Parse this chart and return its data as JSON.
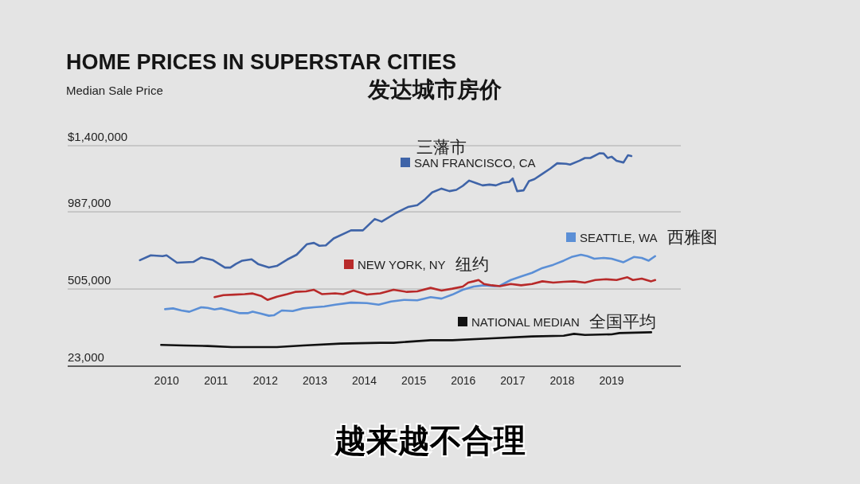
{
  "chart_data": {
    "type": "line",
    "title": "HOME PRICES IN SUPERSTAR CITIES",
    "subtitle": "发达城市房价",
    "ylabel": "Median Sale Price",
    "xlim": [
      2008.0,
      2020.4
    ],
    "xticks": [
      2010,
      2011,
      2012,
      2013,
      2014,
      2015,
      2016,
      2017,
      2018,
      2019
    ],
    "ylim": [
      23000,
      1400000
    ],
    "yticks": [
      {
        "value": 23000,
        "label": "23,000"
      },
      {
        "value": 505000,
        "label": "505,000"
      },
      {
        "value": 987000,
        "label": "987,000"
      },
      {
        "value": 1400000,
        "label": "$1,400,000"
      }
    ],
    "grid": "y",
    "legend": "right",
    "marker": "none",
    "line_style": "solid",
    "annotations": [
      "三藩市",
      "西雅图",
      "纽约",
      "全国平均",
      "越来越不合理"
    ],
    "series": [
      {
        "name": "SAN FRANCISCO, CA",
        "color": "#3f64a8",
        "x": [
          2009.46,
          2009.68,
          2009.92,
          2010.0,
          2010.21,
          2010.54,
          2010.7,
          2010.94,
          2011.18,
          2011.29,
          2011.4,
          2011.53,
          2011.72,
          2011.85,
          2012.07,
          2012.23,
          2012.44,
          2012.63,
          2012.84,
          2012.98,
          2013.09,
          2013.22,
          2013.38,
          2013.73,
          2013.97,
          2014.21,
          2014.35,
          2014.64,
          2014.88,
          2015.07,
          2015.23,
          2015.37,
          2015.56,
          2015.72,
          2015.86,
          2015.99,
          2016.12,
          2016.26,
          2016.39,
          2016.53,
          2016.66,
          2016.8,
          2016.93,
          2017.0,
          2017.09,
          2017.22,
          2017.33,
          2017.44,
          2017.6,
          2017.76,
          2017.9,
          2018.08,
          2018.16,
          2018.35,
          2018.46,
          2018.57,
          2018.76,
          2018.84,
          2018.92,
          2019.0,
          2019.1,
          2019.24,
          2019.33,
          2019.4
        ],
        "values": [
          685000,
          715000,
          710000,
          715000,
          669000,
          674000,
          702000,
          685000,
          639000,
          639000,
          661000,
          682000,
          690000,
          661000,
          639000,
          649000,
          689000,
          719000,
          785000,
          793000,
          775000,
          777000,
          821000,
          871000,
          871000,
          942000,
          926000,
          980000,
          1017000,
          1028000,
          1066000,
          1108000,
          1132000,
          1116000,
          1124000,
          1149000,
          1182000,
          1166000,
          1152000,
          1157000,
          1152000,
          1169000,
          1174000,
          1195000,
          1116000,
          1121000,
          1179000,
          1191000,
          1224000,
          1257000,
          1290000,
          1287000,
          1282000,
          1306000,
          1323000,
          1323000,
          1353000,
          1351000,
          1323000,
          1331000,
          1306000,
          1295000,
          1340000,
          1335000
        ]
      },
      {
        "name": "SEATTLE, WA",
        "color": "#5b8fd6",
        "x": [
          2009.97,
          2010.13,
          2010.3,
          2010.46,
          2010.7,
          2010.83,
          2010.97,
          2011.1,
          2011.32,
          2011.48,
          2011.64,
          2011.74,
          2011.91,
          2012.07,
          2012.17,
          2012.33,
          2012.55,
          2012.76,
          2012.98,
          2013.19,
          2013.41,
          2013.73,
          2014.05,
          2014.29,
          2014.54,
          2014.8,
          2015.07,
          2015.34,
          2015.56,
          2015.78,
          2015.99,
          2016.21,
          2016.42,
          2016.63,
          2016.74,
          2016.96,
          2017.17,
          2017.39,
          2017.6,
          2017.82,
          2018.03,
          2018.19,
          2018.38,
          2018.51,
          2018.65,
          2018.84,
          2019.0,
          2019.24,
          2019.45,
          2019.61,
          2019.75,
          2019.88
        ],
        "values": [
          379000,
          384000,
          371000,
          363000,
          391000,
          387000,
          377000,
          384000,
          367000,
          354000,
          354000,
          363000,
          351000,
          338000,
          341000,
          371000,
          367000,
          384000,
          391000,
          396000,
          407000,
          420000,
          417000,
          407000,
          427000,
          437000,
          434000,
          454000,
          445000,
          470000,
          500000,
          520000,
          528000,
          523000,
          525000,
          561000,
          583000,
          606000,
          636000,
          656000,
          682000,
          705000,
          719000,
          710000,
          694000,
          699000,
          694000,
          672000,
          705000,
          699000,
          682000,
          710000
        ]
      },
      {
        "name": "NEW YORK, NY",
        "color": "#b82a2a",
        "x": [
          2010.97,
          2011.15,
          2011.37,
          2011.58,
          2011.74,
          2011.91,
          2012.04,
          2012.23,
          2012.44,
          2012.6,
          2012.82,
          2012.98,
          2013.14,
          2013.41,
          2013.57,
          2013.78,
          2014.05,
          2014.32,
          2014.59,
          2014.86,
          2015.07,
          2015.34,
          2015.56,
          2015.78,
          2015.99,
          2016.1,
          2016.21,
          2016.31,
          2016.42,
          2016.58,
          2016.74,
          2016.96,
          2017.17,
          2017.39,
          2017.6,
          2017.82,
          2018.03,
          2018.24,
          2018.46,
          2018.67,
          2018.89,
          2019.1,
          2019.32,
          2019.43,
          2019.61,
          2019.8,
          2019.88
        ],
        "values": [
          454000,
          467000,
          470000,
          473000,
          477000,
          462000,
          437000,
          457000,
          473000,
          487000,
          490000,
          500000,
          473000,
          478000,
          473000,
          495000,
          470000,
          478000,
          500000,
          487000,
          490000,
          512000,
          495000,
          507000,
          520000,
          545000,
          553000,
          561000,
          536000,
          528000,
          523000,
          536000,
          528000,
          536000,
          553000,
          545000,
          550000,
          553000,
          545000,
          561000,
          566000,
          561000,
          578000,
          561000,
          570000,
          553000,
          561000
        ]
      },
      {
        "name": "NATIONAL MEDIAN",
        "color": "#111111",
        "x": [
          2009.89,
          2010.35,
          2010.83,
          2011.32,
          2012.23,
          2012.76,
          2013.52,
          2014.32,
          2014.59,
          2015.34,
          2015.78,
          2016.58,
          2017.39,
          2018.03,
          2018.24,
          2018.46,
          2019.0,
          2019.16,
          2019.8
        ],
        "values": [
          156000,
          152000,
          149000,
          142000,
          142000,
          152000,
          164000,
          169000,
          169000,
          185000,
          185000,
          197000,
          209000,
          213000,
          225000,
          218000,
          222000,
          230000,
          235000
        ]
      }
    ]
  }
}
